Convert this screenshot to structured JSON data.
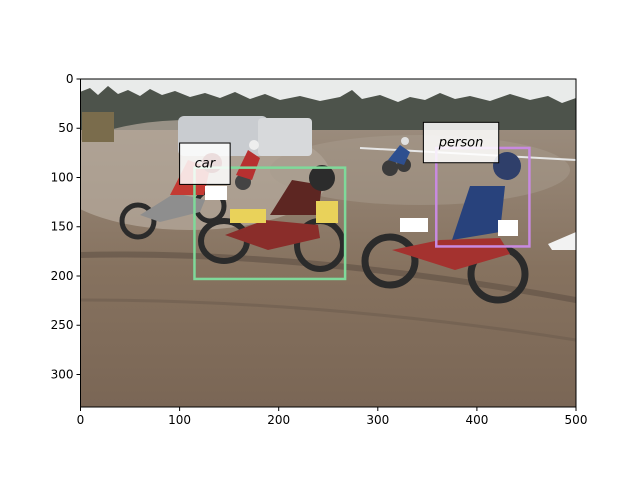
{
  "figure": {
    "image": {
      "width": 500,
      "height": 333,
      "scene": "motocross dirt track racing",
      "colors": {
        "sky": "#e9ebea",
        "trees": "#4a5048",
        "dirt": "#8a7866",
        "dirt_dark": "#6f5f50",
        "dust": "#b3a898"
      }
    },
    "x_axis": {
      "lim": [
        0,
        500
      ],
      "ticks": [
        0,
        100,
        200,
        300,
        400,
        500
      ]
    },
    "y_axis": {
      "lim": [
        333,
        0
      ],
      "ticks": [
        0,
        50,
        100,
        150,
        200,
        250,
        300
      ]
    },
    "boxes": [
      {
        "id": "box-green",
        "x0": 115,
        "y0": 90,
        "x1": 267,
        "y1": 203,
        "color": "#7fd99a",
        "label": ""
      },
      {
        "id": "box-purple",
        "x0": 359,
        "y0": 70,
        "x1": 453,
        "y1": 170,
        "color": "#c88ae0",
        "label": ""
      }
    ],
    "labels": [
      {
        "id": "label-car",
        "text": "car",
        "x0": 100,
        "y0": 65,
        "x1": 151,
        "y1": 107
      },
      {
        "id": "label-person",
        "text": "person",
        "x0": 346,
        "y0": 44,
        "x1": 422,
        "y1": 85
      }
    ]
  }
}
